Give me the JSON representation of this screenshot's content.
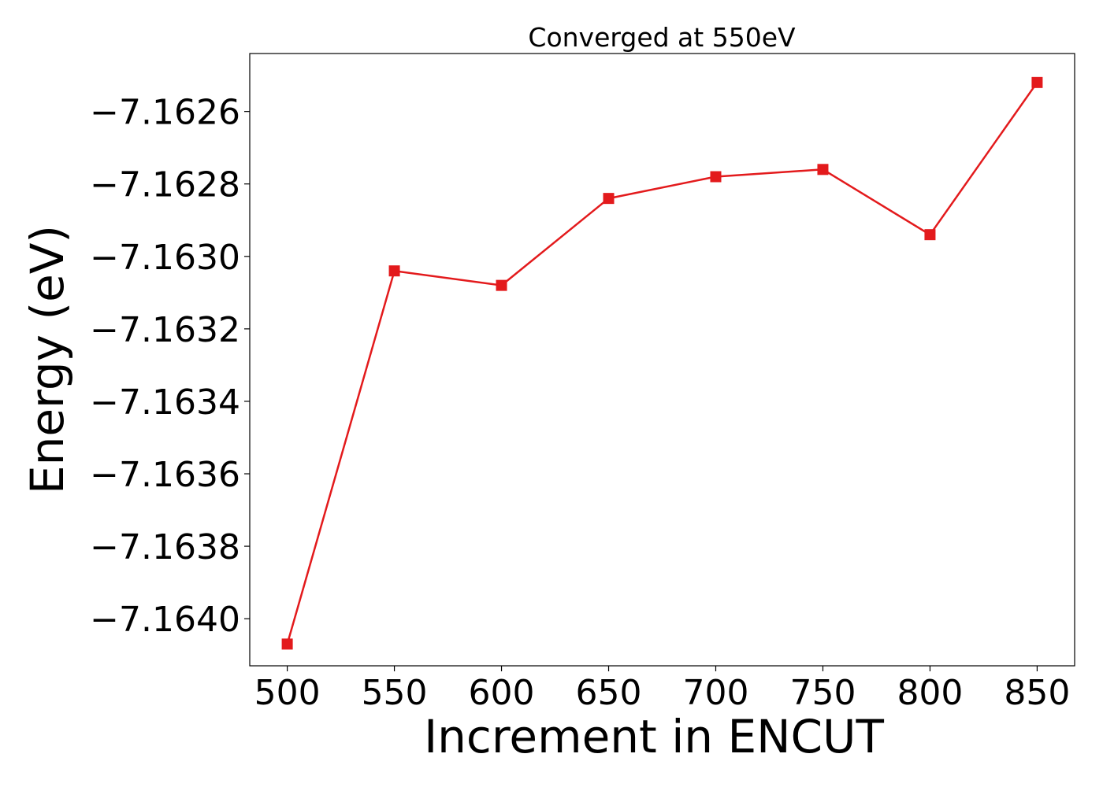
{
  "chart_data": {
    "type": "line",
    "title": "Converged at 550eV",
    "xlabel": "Increment in ENCUT",
    "ylabel": "Energy (eV)",
    "x": [
      500,
      550,
      600,
      650,
      700,
      750,
      800,
      850
    ],
    "series": [
      {
        "values": [
          -7.16407,
          -7.16304,
          -7.16308,
          -7.16284,
          -7.16278,
          -7.16276,
          -7.16294,
          -7.16252
        ],
        "color": "#e31a1c",
        "marker": "square"
      }
    ],
    "xticks": [
      500,
      550,
      600,
      650,
      700,
      750,
      800,
      850
    ],
    "xtick_labels": [
      "500",
      "550",
      "600",
      "650",
      "700",
      "750",
      "800",
      "850"
    ],
    "yticks": [
      -7.164,
      -7.1638,
      -7.1636,
      -7.1634,
      -7.1632,
      -7.163,
      -7.1628,
      -7.1626
    ],
    "ytick_labels": [
      "−7.1640",
      "−7.1638",
      "−7.1636",
      "−7.1634",
      "−7.1632",
      "−7.1630",
      "−7.1628",
      "−7.1626"
    ],
    "xlim": [
      482.5,
      867.5
    ],
    "ylim": [
      -7.16413,
      -7.16244
    ],
    "grid": false,
    "legend": false
  }
}
